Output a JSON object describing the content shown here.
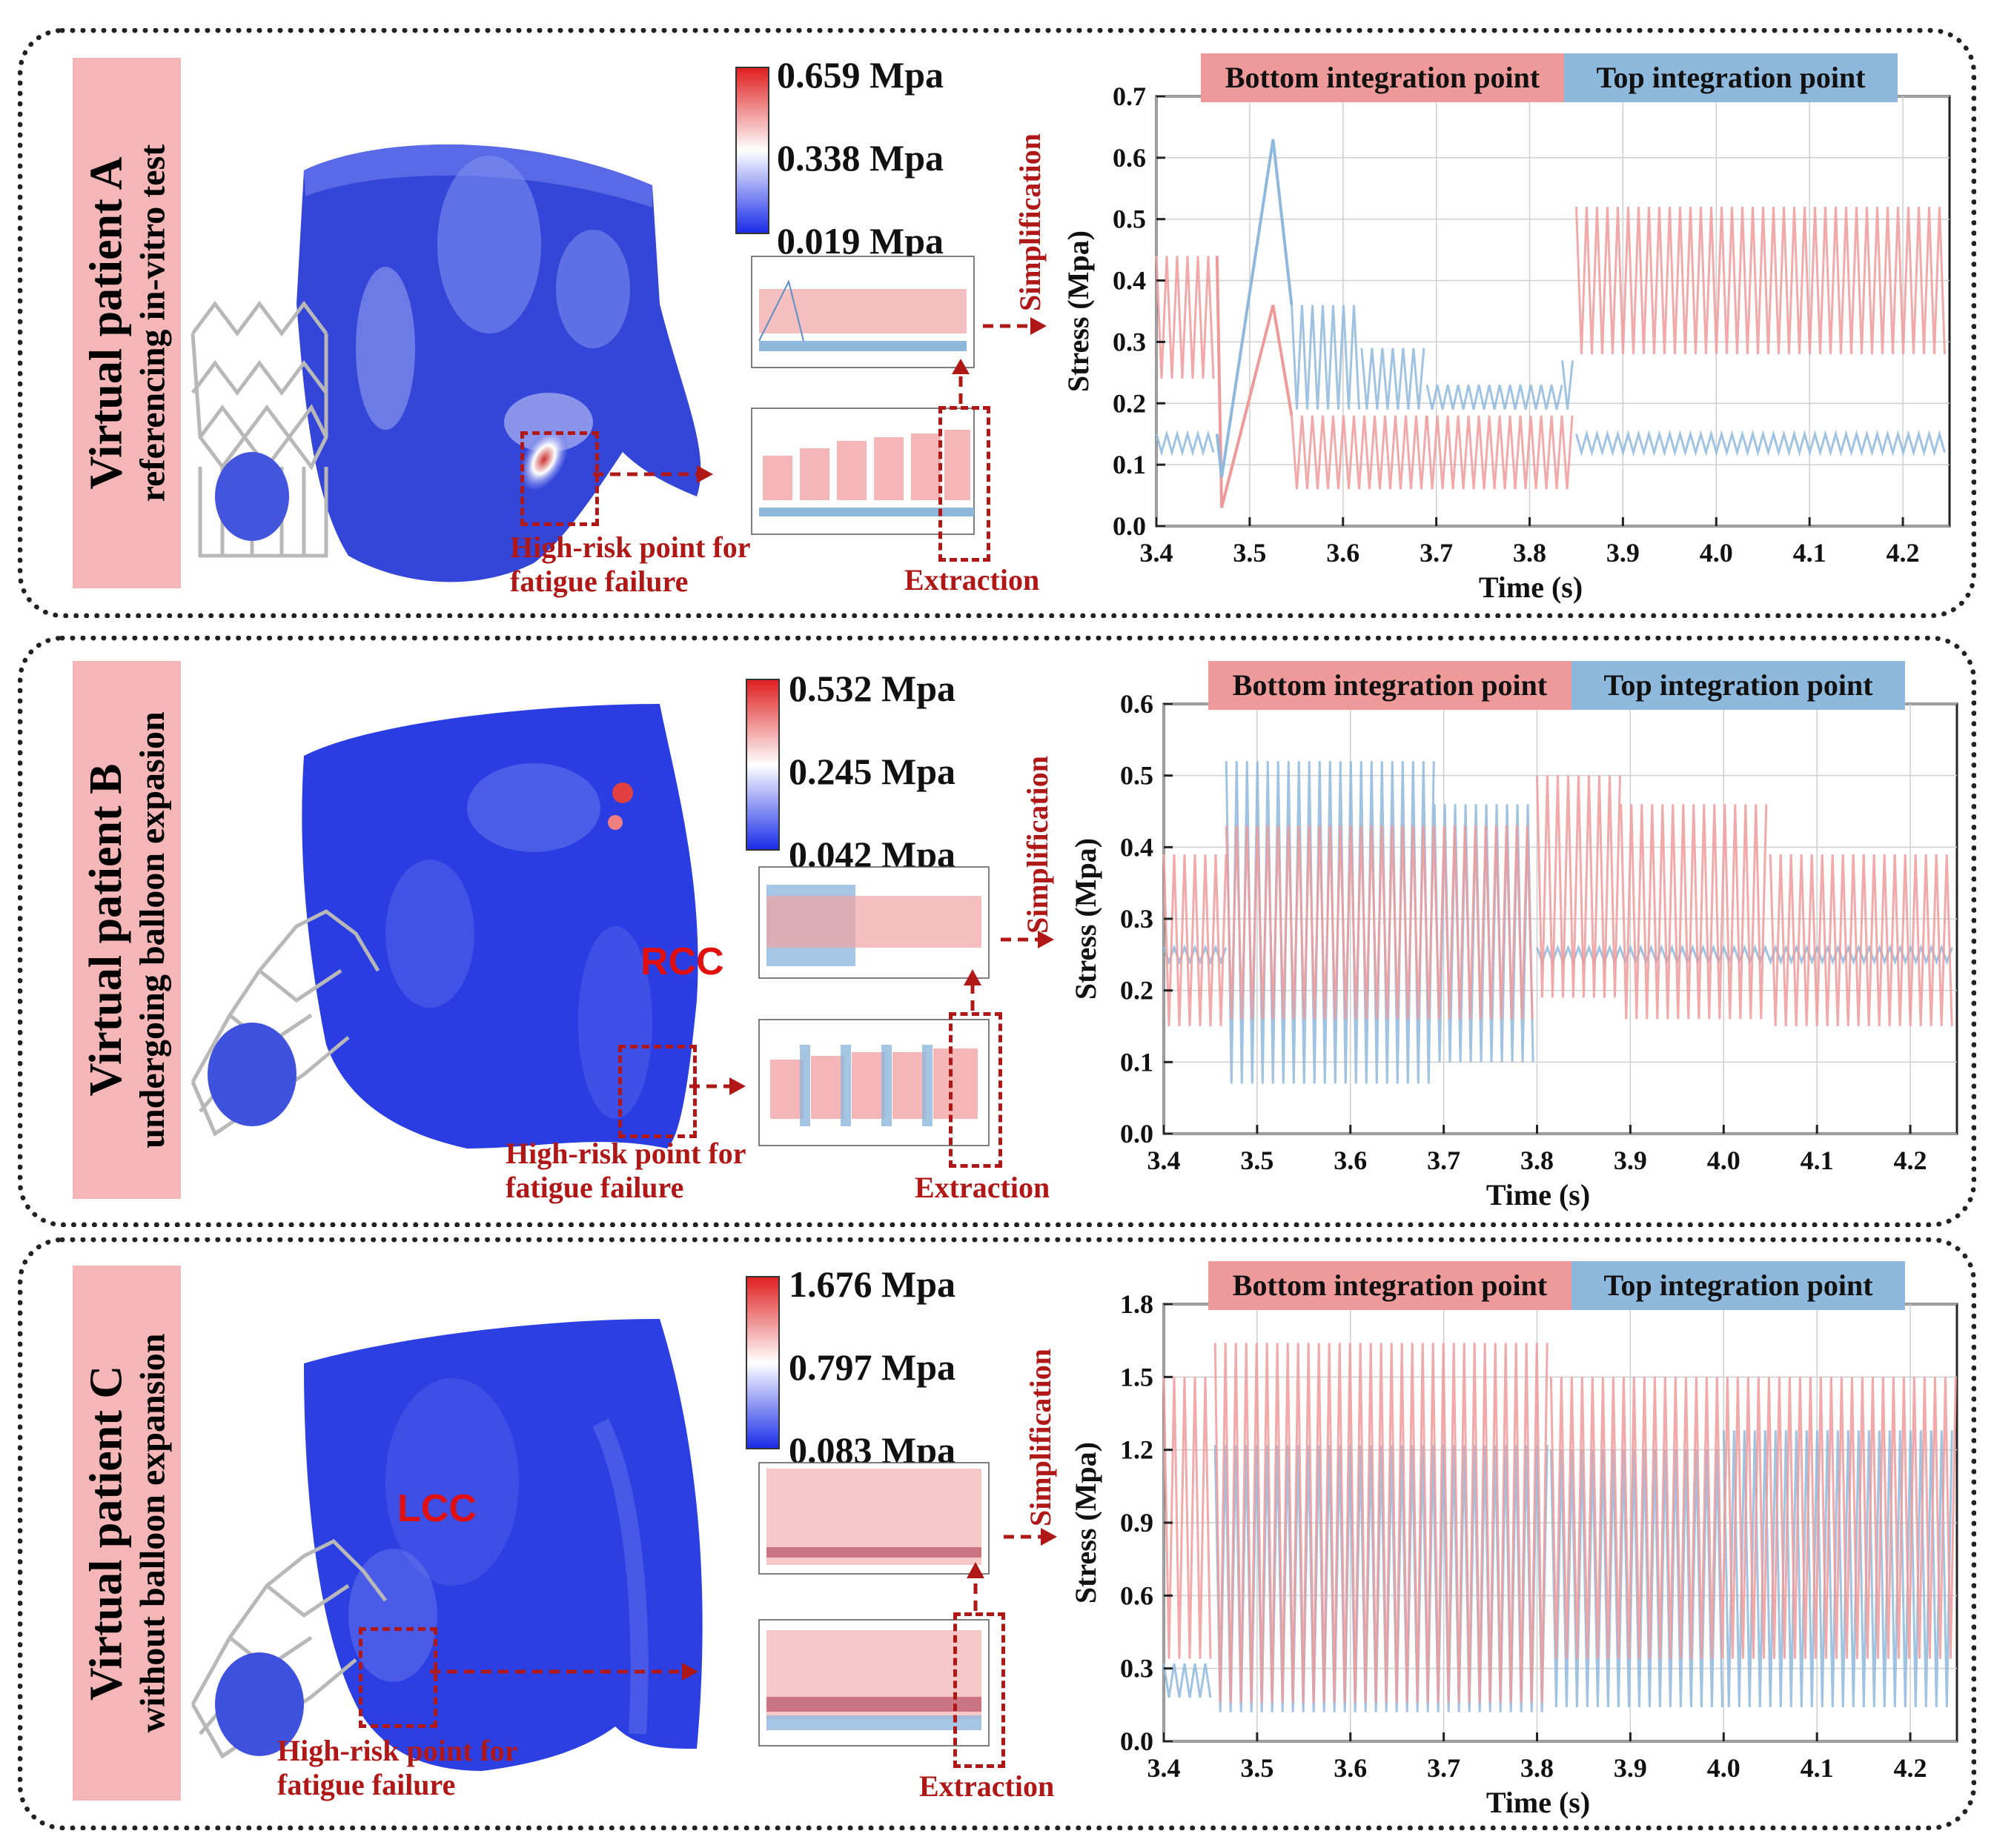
{
  "panels": [
    {
      "title": "Virtual patient A",
      "subtitle": "referencing in-vitro test",
      "colorbar": {
        "max": "0.659 Mpa",
        "mid": "0.338 Mpa",
        "min": "0.019 Mpa"
      },
      "high_risk_label_1": "High-risk point for",
      "high_risk_label_2": "fatigue failure",
      "extraction_label": "Extraction",
      "simplification_label": "Simplification",
      "anatomy_label": "",
      "colors": {
        "bottom": "#ef9a9a",
        "top": "#8fb8dd"
      },
      "chart_data": {
        "type": "line",
        "legend": [
          "Bottom integration point",
          "Top integration point"
        ],
        "xlabel": "Time (s)",
        "ylabel": "Stress (Mpa)",
        "xlim": [
          3.4,
          4.25
        ],
        "ylim": [
          0,
          0.7
        ],
        "xticks": [
          "3.4",
          "3.5",
          "3.6",
          "3.7",
          "3.8",
          "3.9",
          "4.0",
          "4.1",
          "4.2"
        ],
        "yticks": [
          "0.0",
          "0.1",
          "0.2",
          "0.3",
          "0.4",
          "0.5",
          "0.6",
          "0.7"
        ],
        "grid": true,
        "series": [
          {
            "name": "Bottom integration point",
            "style": "band",
            "segments": [
              {
                "x": [
                  3.4,
                  3.465
                ],
                "low": 0.24,
                "high": 0.44
              },
              {
                "x": [
                  3.545,
                  3.69
                ],
                "low": 0.06,
                "high": 0.18
              },
              {
                "x": [
                  3.69,
                  3.85
                ],
                "low": 0.06,
                "high": 0.18
              },
              {
                "x": [
                  3.85,
                  4.25
                ],
                "low": 0.28,
                "high": 0.52
              }
            ],
            "peaks": [
              [
                3.465,
                0.44
              ],
              [
                3.47,
                0.03
              ],
              [
                3.525,
                0.36
              ],
              [
                3.545,
                0.18
              ]
            ]
          },
          {
            "name": "Top integration point",
            "style": "band",
            "segments": [
              {
                "x": [
                  3.4,
                  3.465
                ],
                "low": 0.12,
                "high": 0.15
              },
              {
                "x": [
                  3.545,
                  3.62
                ],
                "low": 0.19,
                "high": 0.36
              },
              {
                "x": [
                  3.62,
                  3.69
                ],
                "low": 0.19,
                "high": 0.29
              },
              {
                "x": [
                  3.69,
                  3.835
                ],
                "low": 0.19,
                "high": 0.23
              },
              {
                "x": [
                  3.835,
                  3.85
                ],
                "low": 0.19,
                "high": 0.27
              },
              {
                "x": [
                  3.85,
                  4.25
                ],
                "low": 0.12,
                "high": 0.15
              }
            ],
            "peaks": [
              [
                3.465,
                0.15
              ],
              [
                3.47,
                0.08
              ],
              [
                3.525,
                0.63
              ],
              [
                3.545,
                0.36
              ]
            ]
          }
        ]
      }
    },
    {
      "title": "Virtual patient B",
      "subtitle": "undergoing balloon expasion",
      "colorbar": {
        "max": "0.532 Mpa",
        "mid": "0.245 Mpa",
        "min": "0.042 Mpa"
      },
      "high_risk_label_1": "High-risk point for",
      "high_risk_label_2": "fatigue failure",
      "extraction_label": "Extraction",
      "simplification_label": "Simplification",
      "anatomy_label": "RCC",
      "colors": {
        "bottom": "#ef9a9a",
        "top": "#8fb8dd"
      },
      "chart_data": {
        "type": "line",
        "legend": [
          "Bottom integration point",
          "Top integration point"
        ],
        "xlabel": "Time (s)",
        "ylabel": "Stress (Mpa)",
        "xlim": [
          3.4,
          4.25
        ],
        "ylim": [
          0,
          0.6
        ],
        "xticks": [
          "3.4",
          "3.5",
          "3.6",
          "3.7",
          "3.8",
          "3.9",
          "4.0",
          "4.1",
          "4.2"
        ],
        "yticks": [
          "0.0",
          "0.1",
          "0.2",
          "0.3",
          "0.4",
          "0.5",
          "0.6"
        ],
        "grid": true,
        "series": [
          {
            "name": "Top integration point",
            "style": "band",
            "segments": [
              {
                "x": [
                  3.4,
                  3.467
                ],
                "low": 0.24,
                "high": 0.26
              },
              {
                "x": [
                  3.467,
                  3.69
                ],
                "low": 0.07,
                "high": 0.52
              },
              {
                "x": [
                  3.69,
                  3.8
                ],
                "low": 0.1,
                "high": 0.46
              },
              {
                "x": [
                  3.8,
                  4.25
                ],
                "low": 0.24,
                "high": 0.26
              }
            ]
          },
          {
            "name": "Bottom integration point",
            "style": "band",
            "segments": [
              {
                "x": [
                  3.4,
                  3.467
                ],
                "low": 0.15,
                "high": 0.39
              },
              {
                "x": [
                  3.467,
                  3.8
                ],
                "low": 0.16,
                "high": 0.43
              },
              {
                "x": [
                  3.8,
                  3.89
                ],
                "low": 0.19,
                "high": 0.5
              },
              {
                "x": [
                  3.89,
                  4.05
                ],
                "low": 0.16,
                "high": 0.46
              },
              {
                "x": [
                  4.05,
                  4.25
                ],
                "low": 0.15,
                "high": 0.39
              }
            ]
          }
        ]
      }
    },
    {
      "title": "Virtual patient C",
      "subtitle": "without balloon expansion",
      "colorbar": {
        "max": "1.676 Mpa",
        "mid": "0.797 Mpa",
        "min": "0.083 Mpa"
      },
      "high_risk_label_1": "High-risk point for",
      "high_risk_label_2": "fatigue failure",
      "extraction_label": "Extraction",
      "simplification_label": "Simplification",
      "anatomy_label": "LCC",
      "colors": {
        "bottom": "#ef9a9a",
        "top": "#8fb8dd"
      },
      "chart_data": {
        "type": "line",
        "legend": [
          "Bottom integration point",
          "Top integration point"
        ],
        "xlabel": "Time (s)",
        "ylabel": "Stress (Mpa)",
        "xlim": [
          3.4,
          4.25
        ],
        "ylim": [
          0,
          1.8
        ],
        "xticks": [
          "3.4",
          "3.5",
          "3.6",
          "3.7",
          "3.8",
          "3.9",
          "4.0",
          "4.1",
          "4.2"
        ],
        "yticks": [
          "0.0",
          "0.3",
          "0.6",
          "0.9",
          "1.2",
          "1.5",
          "1.8"
        ],
        "grid": true,
        "series": [
          {
            "name": "Top integration point",
            "style": "band",
            "segments": [
              {
                "x": [
                  3.4,
                  3.455
                ],
                "low": 0.18,
                "high": 0.32
              },
              {
                "x": [
                  3.455,
                  3.815
                ],
                "low": 0.12,
                "high": 1.22
              },
              {
                "x": [
                  3.815,
                  4.0
                ],
                "low": 0.14,
                "high": 1.2
              },
              {
                "x": [
                  4.0,
                  4.25
                ],
                "low": 0.14,
                "high": 1.28
              }
            ]
          },
          {
            "name": "Bottom integration point",
            "style": "band",
            "segments": [
              {
                "x": [
                  3.4,
                  3.455
                ],
                "low": 0.34,
                "high": 1.5
              },
              {
                "x": [
                  3.455,
                  3.815
                ],
                "low": 0.16,
                "high": 1.64
              },
              {
                "x": [
                  3.815,
                  4.25
                ],
                "low": 0.34,
                "high": 1.5
              }
            ]
          }
        ]
      }
    }
  ]
}
